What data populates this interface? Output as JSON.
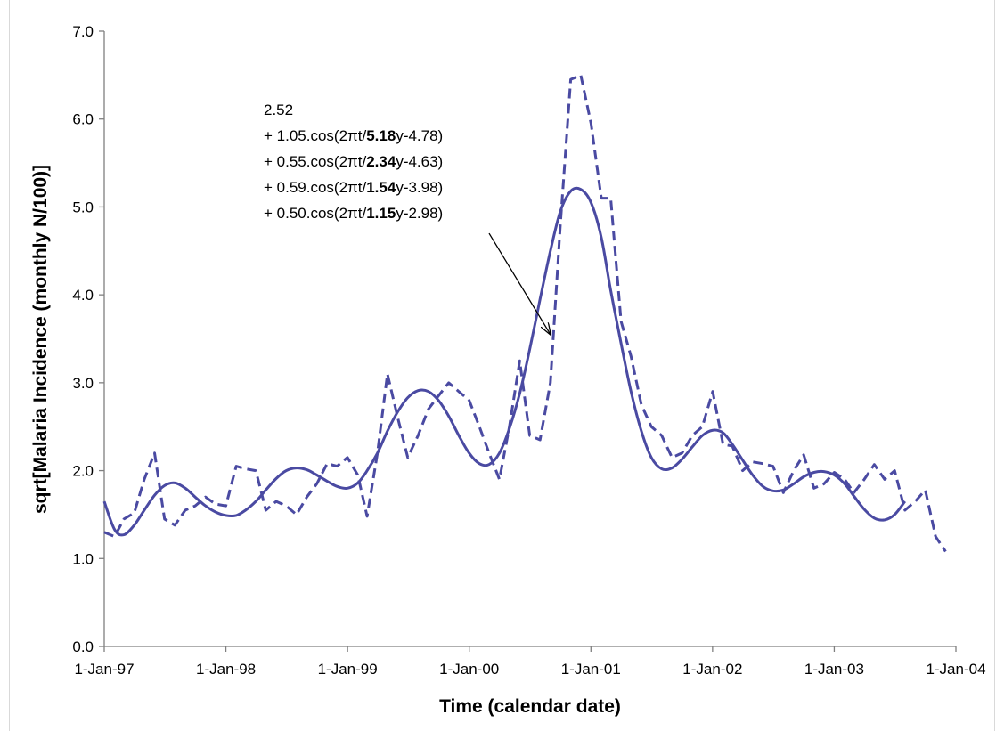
{
  "chart_data": {
    "type": "line",
    "xlabel": "Time (calendar date)",
    "ylabel": "sqrt[Malaria Incidence (monthly N/100)]",
    "ylim": [
      0,
      7
    ],
    "yticks": [
      "0.0",
      "1.0",
      "2.0",
      "3.0",
      "4.0",
      "5.0",
      "6.0",
      "7.0"
    ],
    "xlim": [
      "1997-01-01",
      "2004-01-01"
    ],
    "xticks": [
      "1-Jan-97",
      "1-Jan-98",
      "1-Jan-99",
      "1-Jan-00",
      "1-Jan-01",
      "1-Jan-02",
      "1-Jan-03",
      "1-Jan-04"
    ],
    "grid": false,
    "colors": {
      "series": "#4a4aa2"
    },
    "series": [
      {
        "style": "dashed",
        "points": [
          [
            "1997-01-01",
            1.3
          ],
          [
            "1997-02-01",
            1.25
          ],
          [
            "1997-03-01",
            1.45
          ],
          [
            "1997-04-01",
            1.52
          ],
          [
            "1997-05-01",
            1.9
          ],
          [
            "1997-06-01",
            2.2
          ],
          [
            "1997-07-01",
            1.45
          ],
          [
            "1997-08-01",
            1.38
          ],
          [
            "1997-09-01",
            1.55
          ],
          [
            "1997-10-01",
            1.6
          ],
          [
            "1997-11-01",
            1.7
          ],
          [
            "1997-12-01",
            1.62
          ],
          [
            "1998-01-01",
            1.6
          ],
          [
            "1998-02-01",
            2.05
          ],
          [
            "1998-03-01",
            2.02
          ],
          [
            "1998-04-01",
            2.0
          ],
          [
            "1998-05-01",
            1.55
          ],
          [
            "1998-06-01",
            1.65
          ],
          [
            "1998-07-01",
            1.6
          ],
          [
            "1998-08-01",
            1.5
          ],
          [
            "1998-09-01",
            1.7
          ],
          [
            "1998-10-01",
            1.85
          ],
          [
            "1998-11-01",
            2.08
          ],
          [
            "1998-12-01",
            2.05
          ],
          [
            "1999-01-01",
            2.15
          ],
          [
            "1999-02-01",
            1.95
          ],
          [
            "1999-03-01",
            1.48
          ],
          [
            "1999-04-01",
            2.2
          ],
          [
            "1999-05-01",
            3.1
          ],
          [
            "1999-06-01",
            2.6
          ],
          [
            "1999-07-01",
            2.15
          ],
          [
            "1999-08-01",
            2.4
          ],
          [
            "1999-09-01",
            2.7
          ],
          [
            "1999-10-01",
            2.85
          ],
          [
            "1999-11-01",
            3.0
          ],
          [
            "1999-12-01",
            2.9
          ],
          [
            "2000-01-01",
            2.8
          ],
          [
            "2000-02-01",
            2.5
          ],
          [
            "2000-03-01",
            2.2
          ],
          [
            "2000-04-01",
            1.9
          ],
          [
            "2000-05-01",
            2.5
          ],
          [
            "2000-06-01",
            3.25
          ],
          [
            "2000-07-01",
            2.4
          ],
          [
            "2000-08-01",
            2.35
          ],
          [
            "2000-09-01",
            3.0
          ],
          [
            "2000-10-01",
            4.8
          ],
          [
            "2000-11-01",
            6.45
          ],
          [
            "2000-12-01",
            6.5
          ],
          [
            "2001-01-01",
            5.95
          ],
          [
            "2001-02-01",
            5.1
          ],
          [
            "2001-03-01",
            5.1
          ],
          [
            "2001-04-01",
            3.7
          ],
          [
            "2001-05-01",
            3.3
          ],
          [
            "2001-06-01",
            2.75
          ],
          [
            "2001-07-01",
            2.5
          ],
          [
            "2001-08-01",
            2.4
          ],
          [
            "2001-09-01",
            2.15
          ],
          [
            "2001-10-01",
            2.2
          ],
          [
            "2001-11-01",
            2.4
          ],
          [
            "2001-12-01",
            2.5
          ],
          [
            "2002-01-01",
            2.9
          ],
          [
            "2002-02-01",
            2.3
          ],
          [
            "2002-03-01",
            2.28
          ],
          [
            "2002-04-01",
            2.0
          ],
          [
            "2002-05-01",
            2.1
          ],
          [
            "2002-06-01",
            2.08
          ],
          [
            "2002-07-01",
            2.05
          ],
          [
            "2002-08-01",
            1.75
          ],
          [
            "2002-09-01",
            2.0
          ],
          [
            "2002-10-01",
            2.18
          ],
          [
            "2002-11-01",
            1.8
          ],
          [
            "2002-12-01",
            1.85
          ],
          [
            "2003-01-01",
            1.98
          ],
          [
            "2003-02-01",
            1.9
          ],
          [
            "2003-03-01",
            1.75
          ],
          [
            "2003-04-01",
            1.9
          ],
          [
            "2003-05-01",
            2.07
          ],
          [
            "2003-06-01",
            1.9
          ],
          [
            "2003-07-01",
            2.0
          ],
          [
            "2003-08-01",
            1.55
          ],
          [
            "2003-09-01",
            1.65
          ],
          [
            "2003-10-01",
            1.78
          ],
          [
            "2003-11-01",
            1.25
          ],
          [
            "2003-12-01",
            1.08
          ]
        ]
      },
      {
        "style": "solid",
        "points": [
          [
            "1997-01-01",
            1.65
          ],
          [
            "1997-02-01",
            1.33
          ],
          [
            "1997-03-01",
            1.27
          ],
          [
            "1997-04-01",
            1.38
          ],
          [
            "1997-05-01",
            1.55
          ],
          [
            "1997-06-01",
            1.72
          ],
          [
            "1997-07-01",
            1.83
          ],
          [
            "1997-08-01",
            1.86
          ],
          [
            "1997-09-01",
            1.8
          ],
          [
            "1997-10-01",
            1.7
          ],
          [
            "1997-11-01",
            1.6
          ],
          [
            "1997-12-01",
            1.53
          ],
          [
            "1998-01-01",
            1.49
          ],
          [
            "1998-02-01",
            1.49
          ],
          [
            "1998-03-01",
            1.55
          ],
          [
            "1998-04-01",
            1.65
          ],
          [
            "1998-05-01",
            1.78
          ],
          [
            "1998-06-01",
            1.91
          ],
          [
            "1998-07-01",
            2.0
          ],
          [
            "1998-08-01",
            2.03
          ],
          [
            "1998-09-01",
            2.01
          ],
          [
            "1998-10-01",
            1.95
          ],
          [
            "1998-11-01",
            1.88
          ],
          [
            "1998-12-01",
            1.82
          ],
          [
            "1999-01-01",
            1.8
          ],
          [
            "1999-02-01",
            1.86
          ],
          [
            "1999-03-01",
            2.0
          ],
          [
            "1999-04-01",
            2.2
          ],
          [
            "1999-05-01",
            2.45
          ],
          [
            "1999-06-01",
            2.67
          ],
          [
            "1999-07-01",
            2.83
          ],
          [
            "1999-08-01",
            2.91
          ],
          [
            "1999-09-01",
            2.9
          ],
          [
            "1999-10-01",
            2.8
          ],
          [
            "1999-11-01",
            2.62
          ],
          [
            "1999-12-01",
            2.4
          ],
          [
            "2000-01-01",
            2.2
          ],
          [
            "2000-02-01",
            2.08
          ],
          [
            "2000-03-01",
            2.07
          ],
          [
            "2000-04-01",
            2.2
          ],
          [
            "2000-05-01",
            2.48
          ],
          [
            "2000-06-01",
            2.88
          ],
          [
            "2000-07-01",
            3.38
          ],
          [
            "2000-08-01",
            3.95
          ],
          [
            "2000-09-01",
            4.5
          ],
          [
            "2000-10-01",
            4.95
          ],
          [
            "2000-11-01",
            5.18
          ],
          [
            "2000-12-01",
            5.2
          ],
          [
            "2001-01-01",
            5.05
          ],
          [
            "2001-02-01",
            4.65
          ],
          [
            "2001-03-01",
            4.05
          ],
          [
            "2001-04-01",
            3.45
          ],
          [
            "2001-05-01",
            2.9
          ],
          [
            "2001-06-01",
            2.45
          ],
          [
            "2001-07-01",
            2.15
          ],
          [
            "2001-08-01",
            2.02
          ],
          [
            "2001-09-01",
            2.03
          ],
          [
            "2001-10-01",
            2.13
          ],
          [
            "2001-11-01",
            2.27
          ],
          [
            "2001-12-01",
            2.4
          ],
          [
            "2002-01-01",
            2.46
          ],
          [
            "2002-02-01",
            2.43
          ],
          [
            "2002-03-01",
            2.3
          ],
          [
            "2002-04-01",
            2.12
          ],
          [
            "2002-05-01",
            1.95
          ],
          [
            "2002-06-01",
            1.82
          ],
          [
            "2002-07-01",
            1.77
          ],
          [
            "2002-08-01",
            1.78
          ],
          [
            "2002-09-01",
            1.85
          ],
          [
            "2002-10-01",
            1.93
          ],
          [
            "2002-11-01",
            1.98
          ],
          [
            "2002-12-01",
            1.99
          ],
          [
            "2003-01-01",
            1.95
          ],
          [
            "2003-02-01",
            1.85
          ],
          [
            "2003-03-01",
            1.71
          ],
          [
            "2003-04-01",
            1.56
          ],
          [
            "2003-05-01",
            1.46
          ],
          [
            "2003-06-01",
            1.44
          ],
          [
            "2003-07-01",
            1.5
          ],
          [
            "2003-08-01",
            1.65
          ]
        ]
      }
    ],
    "annotation": {
      "lines": [
        [
          {
            "t": "2.52",
            "b": false
          }
        ],
        [
          {
            "t": "+ 1.05.cos(2πt/",
            "b": false
          },
          {
            "t": "5.18",
            "b": true
          },
          {
            "t": "y-4.78)",
            "b": false
          }
        ],
        [
          {
            "t": "+ 0.55.cos(2πt/",
            "b": false
          },
          {
            "t": "2.34",
            "b": true
          },
          {
            "t": "y-4.63)",
            "b": false
          }
        ],
        [
          {
            "t": "+ 0.59.cos(2πt/",
            "b": false
          },
          {
            "t": "1.54",
            "b": true
          },
          {
            "t": "y-3.98)",
            "b": false
          }
        ],
        [
          {
            "t": "+ 0.50.cos(2πt/",
            "b": false
          },
          {
            "t": "1.15",
            "b": true
          },
          {
            "t": "y-2.98)",
            "b": false
          }
        ]
      ],
      "arrow_from": [
        "2000-03-01",
        4.7
      ],
      "arrow_to": [
        "2000-09-01",
        3.55
      ]
    }
  }
}
